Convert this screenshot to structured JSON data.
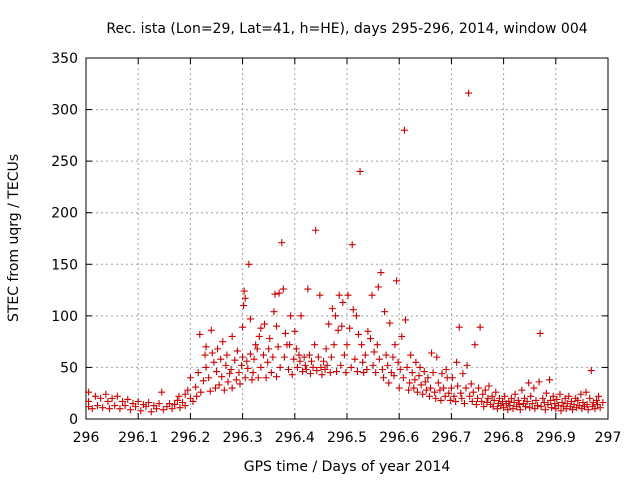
{
  "chart_data": {
    "type": "scatter",
    "title": "Rec. ista (Lon=29, Lat=41, h=HE), days 295-296, 2014, window 004",
    "xlabel": "GPS time / Days of year 2014",
    "ylabel": "STEC from uqrg / TECUs",
    "xlim": [
      296,
      297
    ],
    "ylim": [
      0,
      350
    ],
    "grid": true,
    "marker": "+",
    "colors": {
      "points": "#cc0000",
      "grid": "#a0a0a0",
      "axes": "#000000"
    },
    "x_ticks": [
      {
        "value": 296,
        "label": "296"
      },
      {
        "value": 296.1,
        "label": "296.1"
      },
      {
        "value": 296.2,
        "label": "296.2"
      },
      {
        "value": 296.3,
        "label": "296.3"
      },
      {
        "value": 296.4,
        "label": "296.4"
      },
      {
        "value": 296.5,
        "label": "296.5"
      },
      {
        "value": 296.6,
        "label": "296.6"
      },
      {
        "value": 296.7,
        "label": "296.7"
      },
      {
        "value": 296.8,
        "label": "296.8"
      },
      {
        "value": 296.9,
        "label": "296.9"
      },
      {
        "value": 297,
        "label": "297"
      }
    ],
    "y_ticks": [
      {
        "value": 0,
        "label": "0"
      },
      {
        "value": 50,
        "label": "50"
      },
      {
        "value": 100,
        "label": "100"
      },
      {
        "value": 150,
        "label": "150"
      },
      {
        "value": 200,
        "label": "200"
      },
      {
        "value": 250,
        "label": "250"
      },
      {
        "value": 300,
        "label": "300"
      },
      {
        "value": 350,
        "label": "350"
      }
    ],
    "points": [
      [
        296.005,
        26
      ],
      [
        296.005,
        17
      ],
      [
        296.005,
        12
      ],
      [
        296.012,
        10
      ],
      [
        296.018,
        22
      ],
      [
        296.022,
        13
      ],
      [
        296.028,
        20
      ],
      [
        296.032,
        11
      ],
      [
        296.038,
        24
      ],
      [
        296.042,
        17
      ],
      [
        296.045,
        10
      ],
      [
        296.05,
        20
      ],
      [
        296.055,
        13
      ],
      [
        296.06,
        22
      ],
      [
        296.065,
        10
      ],
      [
        296.07,
        17
      ],
      [
        296.075,
        13
      ],
      [
        296.08,
        19
      ],
      [
        296.085,
        9
      ],
      [
        296.09,
        15
      ],
      [
        296.095,
        12
      ],
      [
        296.1,
        17
      ],
      [
        296.105,
        8
      ],
      [
        296.11,
        14
      ],
      [
        296.115,
        12
      ],
      [
        296.12,
        16
      ],
      [
        296.125,
        7
      ],
      [
        296.13,
        13
      ],
      [
        296.135,
        10
      ],
      [
        296.14,
        15
      ],
      [
        296.145,
        26
      ],
      [
        296.148,
        9
      ],
      [
        296.155,
        12
      ],
      [
        296.16,
        15
      ],
      [
        296.165,
        10
      ],
      [
        296.17,
        14
      ],
      [
        296.175,
        18
      ],
      [
        296.178,
        22
      ],
      [
        296.18,
        11
      ],
      [
        296.185,
        16
      ],
      [
        296.19,
        24
      ],
      [
        296.19,
        13
      ],
      [
        296.195,
        28
      ],
      [
        296.2,
        20
      ],
      [
        296.2,
        40
      ],
      [
        296.205,
        17
      ],
      [
        296.21,
        31
      ],
      [
        296.212,
        22
      ],
      [
        296.215,
        45
      ],
      [
        296.218,
        82
      ],
      [
        296.22,
        26
      ],
      [
        296.225,
        37
      ],
      [
        296.228,
        62
      ],
      [
        296.23,
        70
      ],
      [
        296.23,
        50
      ],
      [
        296.235,
        40
      ],
      [
        296.238,
        27
      ],
      [
        296.24,
        86
      ],
      [
        296.242,
        64
      ],
      [
        296.245,
        55
      ],
      [
        296.248,
        30
      ],
      [
        296.25,
        46
      ],
      [
        296.252,
        68
      ],
      [
        296.255,
        33
      ],
      [
        296.258,
        58
      ],
      [
        296.26,
        41
      ],
      [
        296.262,
        75
      ],
      [
        296.265,
        28
      ],
      [
        296.268,
        52
      ],
      [
        296.27,
        62
      ],
      [
        296.272,
        36
      ],
      [
        296.275,
        44
      ],
      [
        296.278,
        48
      ],
      [
        296.28,
        30
      ],
      [
        296.28,
        80
      ],
      [
        296.285,
        57
      ],
      [
        296.288,
        38
      ],
      [
        296.29,
        66
      ],
      [
        296.293,
        45
      ],
      [
        296.295,
        34
      ],
      [
        296.298,
        52
      ],
      [
        296.3,
        89
      ],
      [
        296.3,
        60
      ],
      [
        296.302,
        110
      ],
      [
        296.303,
        124
      ],
      [
        296.305,
        117
      ],
      [
        296.305,
        40
      ],
      [
        296.308,
        56
      ],
      [
        296.31,
        49
      ],
      [
        296.312,
        150
      ],
      [
        296.315,
        97
      ],
      [
        296.315,
        63
      ],
      [
        296.318,
        38
      ],
      [
        296.32,
        45
      ],
      [
        296.322,
        58
      ],
      [
        296.325,
        72
      ],
      [
        296.328,
        68
      ],
      [
        296.33,
        40
      ],
      [
        296.332,
        80
      ],
      [
        296.335,
        50
      ],
      [
        296.335,
        88
      ],
      [
        296.34,
        62
      ],
      [
        296.342,
        92
      ],
      [
        296.345,
        40
      ],
      [
        296.348,
        55
      ],
      [
        296.35,
        68
      ],
      [
        296.352,
        78
      ],
      [
        296.355,
        45
      ],
      [
        296.358,
        60
      ],
      [
        296.36,
        104
      ],
      [
        296.362,
        121
      ],
      [
        296.365,
        90
      ],
      [
        296.365,
        41
      ],
      [
        296.368,
        70
      ],
      [
        296.37,
        122
      ],
      [
        296.372,
        50
      ],
      [
        296.375,
        171
      ],
      [
        296.378,
        126
      ],
      [
        296.38,
        60
      ],
      [
        296.382,
        83
      ],
      [
        296.385,
        72
      ],
      [
        296.388,
        48
      ],
      [
        296.39,
        72
      ],
      [
        296.392,
        100
      ],
      [
        296.395,
        43
      ],
      [
        296.398,
        58
      ],
      [
        296.4,
        85
      ],
      [
        296.403,
        68
      ],
      [
        296.405,
        50
      ],
      [
        296.408,
        62
      ],
      [
        296.41,
        56
      ],
      [
        296.412,
        100
      ],
      [
        296.415,
        46
      ],
      [
        296.418,
        60
      ],
      [
        296.42,
        52
      ],
      [
        296.422,
        48
      ],
      [
        296.425,
        126
      ],
      [
        296.428,
        62
      ],
      [
        296.43,
        44
      ],
      [
        296.432,
        56
      ],
      [
        296.435,
        50
      ],
      [
        296.438,
        72
      ],
      [
        296.44,
        183
      ],
      [
        296.442,
        47
      ],
      [
        296.445,
        60
      ],
      [
        296.448,
        120
      ],
      [
        296.45,
        50
      ],
      [
        296.452,
        43
      ],
      [
        296.455,
        56
      ],
      [
        296.458,
        48
      ],
      [
        296.46,
        68
      ],
      [
        296.462,
        52
      ],
      [
        296.465,
        92
      ],
      [
        296.468,
        45
      ],
      [
        296.47,
        60
      ],
      [
        296.472,
        107
      ],
      [
        296.475,
        72
      ],
      [
        296.478,
        100
      ],
      [
        296.48,
        46
      ],
      [
        296.483,
        86
      ],
      [
        296.485,
        120
      ],
      [
        296.488,
        52
      ],
      [
        296.49,
        90
      ],
      [
        296.492,
        113
      ],
      [
        296.495,
        62
      ],
      [
        296.498,
        45
      ],
      [
        296.5,
        72
      ],
      [
        296.502,
        120
      ],
      [
        296.505,
        88
      ],
      [
        296.508,
        50
      ],
      [
        296.51,
        169
      ],
      [
        296.512,
        106
      ],
      [
        296.515,
        58
      ],
      [
        296.518,
        100
      ],
      [
        296.52,
        46
      ],
      [
        296.522,
        82
      ],
      [
        296.525,
        240
      ],
      [
        296.528,
        72
      ],
      [
        296.53,
        55
      ],
      [
        296.532,
        45
      ],
      [
        296.535,
        62
      ],
      [
        296.538,
        48
      ],
      [
        296.54,
        85
      ],
      [
        296.545,
        78
      ],
      [
        296.548,
        120
      ],
      [
        296.55,
        52
      ],
      [
        296.552,
        65
      ],
      [
        296.555,
        45
      ],
      [
        296.558,
        72
      ],
      [
        296.56,
        128
      ],
      [
        296.562,
        58
      ],
      [
        296.565,
        142
      ],
      [
        296.568,
        48
      ],
      [
        296.57,
        40
      ],
      [
        296.572,
        104
      ],
      [
        296.575,
        62
      ],
      [
        296.578,
        52
      ],
      [
        296.58,
        35
      ],
      [
        296.582,
        93
      ],
      [
        296.585,
        45
      ],
      [
        296.588,
        60
      ],
      [
        296.59,
        42
      ],
      [
        296.592,
        72
      ],
      [
        296.595,
        134
      ],
      [
        296.598,
        55
      ],
      [
        296.6,
        30
      ],
      [
        296.602,
        48
      ],
      [
        296.605,
        80
      ],
      [
        296.608,
        40
      ],
      [
        296.61,
        280
      ],
      [
        296.612,
        96
      ],
      [
        296.615,
        50
      ],
      [
        296.618,
        28
      ],
      [
        296.62,
        35
      ],
      [
        296.622,
        62
      ],
      [
        296.625,
        45
      ],
      [
        296.628,
        30
      ],
      [
        296.63,
        38
      ],
      [
        296.632,
        55
      ],
      [
        296.635,
        26
      ],
      [
        296.638,
        42
      ],
      [
        296.64,
        50
      ],
      [
        296.642,
        33
      ],
      [
        296.645,
        24
      ],
      [
        296.648,
        46
      ],
      [
        296.65,
        36
      ],
      [
        296.652,
        28
      ],
      [
        296.655,
        40
      ],
      [
        296.658,
        22
      ],
      [
        296.66,
        30
      ],
      [
        296.662,
        64
      ],
      [
        296.665,
        45
      ],
      [
        296.668,
        26
      ],
      [
        296.67,
        20
      ],
      [
        296.672,
        60
      ],
      [
        296.675,
        35
      ],
      [
        296.678,
        28
      ],
      [
        296.68,
        18
      ],
      [
        296.682,
        44
      ],
      [
        296.685,
        30
      ],
      [
        296.688,
        22
      ],
      [
        296.69,
        48
      ],
      [
        296.692,
        40
      ],
      [
        296.695,
        25
      ],
      [
        296.698,
        18
      ],
      [
        296.7,
        30
      ],
      [
        296.702,
        40
      ],
      [
        296.705,
        22
      ],
      [
        296.708,
        17
      ],
      [
        296.71,
        55
      ],
      [
        296.712,
        32
      ],
      [
        296.715,
        89
      ],
      [
        296.718,
        25
      ],
      [
        296.72,
        20
      ],
      [
        296.722,
        44
      ],
      [
        296.725,
        15
      ],
      [
        296.728,
        30
      ],
      [
        296.73,
        52
      ],
      [
        296.733,
        316
      ],
      [
        296.735,
        22
      ],
      [
        296.738,
        34
      ],
      [
        296.74,
        17
      ],
      [
        296.742,
        26
      ],
      [
        296.745,
        72
      ],
      [
        296.748,
        14
      ],
      [
        296.75,
        20
      ],
      [
        296.752,
        30
      ],
      [
        296.755,
        89
      ],
      [
        296.758,
        17
      ],
      [
        296.76,
        24
      ],
      [
        296.762,
        12
      ],
      [
        296.765,
        28
      ],
      [
        296.768,
        16
      ],
      [
        296.77,
        20
      ],
      [
        296.772,
        32
      ],
      [
        296.775,
        14
      ],
      [
        296.778,
        22
      ],
      [
        296.78,
        12
      ],
      [
        296.782,
        18
      ],
      [
        296.785,
        26
      ],
      [
        296.788,
        10
      ],
      [
        296.79,
        15
      ],
      [
        296.792,
        20
      ],
      [
        296.795,
        13
      ],
      [
        296.798,
        17
      ],
      [
        296.8,
        11
      ],
      [
        296.802,
        22
      ],
      [
        296.805,
        15
      ],
      [
        296.808,
        9
      ],
      [
        296.81,
        17
      ],
      [
        296.812,
        13
      ],
      [
        296.815,
        20
      ],
      [
        296.818,
        10
      ],
      [
        296.82,
        16
      ],
      [
        296.822,
        24
      ],
      [
        296.825,
        12
      ],
      [
        296.828,
        18
      ],
      [
        296.83,
        14
      ],
      [
        296.832,
        9
      ],
      [
        296.835,
        28
      ],
      [
        296.838,
        15
      ],
      [
        296.84,
        20
      ],
      [
        296.842,
        12
      ],
      [
        296.845,
        17
      ],
      [
        296.848,
        35
      ],
      [
        296.85,
        11
      ],
      [
        296.852,
        22
      ],
      [
        296.855,
        15
      ],
      [
        296.858,
        30
      ],
      [
        296.86,
        10
      ],
      [
        296.862,
        18
      ],
      [
        296.865,
        13
      ],
      [
        296.868,
        36
      ],
      [
        296.87,
        83
      ],
      [
        296.872,
        12
      ],
      [
        296.875,
        20
      ],
      [
        296.878,
        16
      ],
      [
        296.88,
        9
      ],
      [
        296.882,
        25
      ],
      [
        296.885,
        14
      ],
      [
        296.888,
        38
      ],
      [
        296.89,
        18
      ],
      [
        296.892,
        11
      ],
      [
        296.895,
        22
      ],
      [
        296.898,
        15
      ],
      [
        296.9,
        10
      ],
      [
        296.902,
        19
      ],
      [
        296.905,
        13
      ],
      [
        296.908,
        24
      ],
      [
        296.91,
        8
      ],
      [
        296.912,
        16
      ],
      [
        296.915,
        12
      ],
      [
        296.918,
        20
      ],
      [
        296.92,
        10
      ],
      [
        296.922,
        15
      ],
      [
        296.925,
        22
      ],
      [
        296.928,
        12
      ],
      [
        296.93,
        17
      ],
      [
        296.932,
        9
      ],
      [
        296.935,
        14
      ],
      [
        296.938,
        20
      ],
      [
        296.94,
        11
      ],
      [
        296.942,
        18
      ],
      [
        296.945,
        13
      ],
      [
        296.948,
        24
      ],
      [
        296.95,
        10
      ],
      [
        296.952,
        16
      ],
      [
        296.955,
        12
      ],
      [
        296.958,
        26
      ],
      [
        296.96,
        14
      ],
      [
        296.962,
        9
      ],
      [
        296.965,
        20
      ],
      [
        296.968,
        47
      ],
      [
        296.97,
        12
      ],
      [
        296.972,
        16
      ],
      [
        296.975,
        10
      ],
      [
        296.978,
        18
      ],
      [
        296.98,
        14
      ],
      [
        296.982,
        22
      ],
      [
        296.985,
        11
      ],
      [
        296.99,
        16
      ]
    ]
  }
}
